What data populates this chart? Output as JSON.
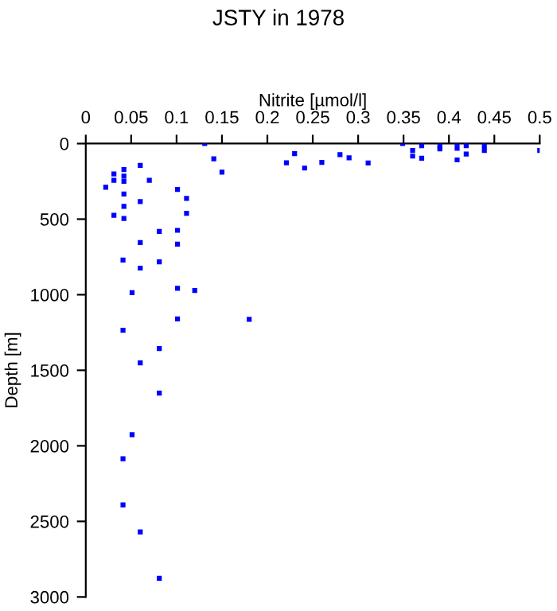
{
  "chart_data": {
    "type": "scatter",
    "title": "JSTY in 1978",
    "xlabel": "Nitrite [µmol/l]",
    "ylabel": "Depth [m]",
    "x": [
      0.131,
      0.141,
      0.15,
      0.221,
      0.23,
      0.241,
      0.06,
      0.07,
      0.031,
      0.042,
      0.042,
      0.042,
      0.031,
      0.022,
      0.042,
      0.06,
      0.101,
      0.111,
      0.042,
      0.031,
      0.042,
      0.111,
      0.081,
      0.101,
      0.06,
      0.101,
      0.041,
      0.081,
      0.06,
      0.051,
      0.101,
      0.12,
      0.101,
      0.18,
      0.041,
      0.081,
      0.06,
      0.081,
      0.051,
      0.041,
      0.041,
      0.06,
      0.081,
      0.26,
      0.28,
      0.29,
      0.311,
      0.349,
      0.36,
      0.36,
      0.37,
      0.37,
      0.39,
      0.39,
      0.409,
      0.409,
      0.409,
      0.419,
      0.419,
      0.439,
      0.439,
      0.5
    ],
    "series": [
      {
        "color": "#0000ff",
        "values": [
          0,
          101,
          189,
          127,
          67,
          162,
          144,
          243,
          201,
          172,
          215,
          250,
          243,
          289,
          334,
          384,
          303,
          363,
          415,
          475,
          496,
          461,
          581,
          574,
          655,
          665,
          771,
          782,
          824,
          986,
          958,
          972,
          1160,
          1163,
          1235,
          1356,
          1451,
          1651,
          1926,
          2085,
          2391,
          2570,
          2877,
          125,
          73,
          94,
          128,
          0,
          45,
          83,
          14,
          97,
          17,
          35,
          0,
          31,
          108,
          14,
          69,
          14,
          45,
          45
        ]
      }
    ],
    "xlim": [
      0,
      0.5
    ],
    "xticks": [
      0,
      0.05,
      0.1,
      0.15,
      0.2,
      0.25,
      0.3,
      0.35,
      0.4,
      0.45,
      0.5
    ],
    "ylim": [
      3000,
      0
    ],
    "yticks": [
      0,
      500,
      1000,
      1500,
      2000,
      2500,
      3000
    ],
    "marker": "square",
    "grid": false,
    "legend": false
  }
}
